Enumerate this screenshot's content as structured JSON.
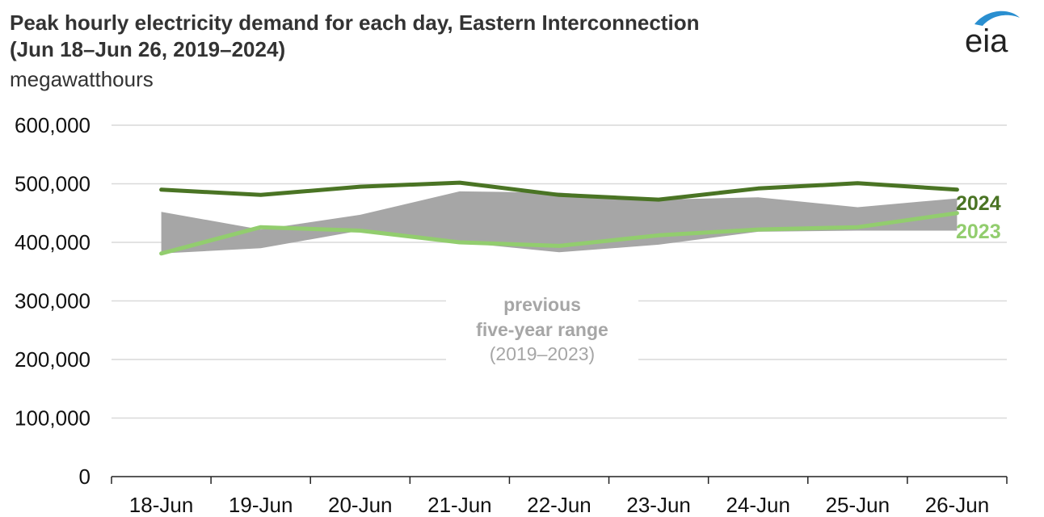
{
  "header": {
    "title_line1": "Peak hourly electricity demand for each day, Eastern Interconnection",
    "title_line2": "(Jun 18–Jun 26, 2019–2024)",
    "units": "megawatthours",
    "logo_text": "eia"
  },
  "colors": {
    "line_2024": "#4a7424",
    "line_2023": "#92cd6e",
    "range_fill": "#a6a6a6",
    "grid": "#d9d9d9"
  },
  "chart_data": {
    "type": "line",
    "title": "Peak hourly electricity demand for each day, Eastern Interconnection (Jun 18–Jun 26, 2019–2024)",
    "ylabel": "megawatthours",
    "xlabel": "",
    "categories": [
      "18-Jun",
      "19-Jun",
      "20-Jun",
      "21-Jun",
      "22-Jun",
      "23-Jun",
      "24-Jun",
      "25-Jun",
      "26-Jun"
    ],
    "ylim": [
      0,
      600000
    ],
    "yticks": [
      0,
      100000,
      200000,
      300000,
      400000,
      500000,
      600000
    ],
    "ytick_labels": [
      "0",
      "100,000",
      "200,000",
      "300,000",
      "400,000",
      "500,000",
      "600,000"
    ],
    "grid": true,
    "range": {
      "name": "previous five-year range (2019–2023)",
      "label_line1": "previous",
      "label_line2": "five-year range",
      "label_line3": "(2019–2023)",
      "upper": [
        452000,
        422000,
        447000,
        487000,
        485000,
        473000,
        477000,
        460000,
        475000
      ],
      "lower": [
        381000,
        390000,
        420000,
        400000,
        383000,
        396000,
        418000,
        420000,
        420000
      ]
    },
    "series": [
      {
        "name": "2024",
        "label": "2024",
        "values": [
          490000,
          481000,
          495000,
          502000,
          481000,
          473000,
          492000,
          501000,
          490000
        ]
      },
      {
        "name": "2023",
        "label": "2023",
        "values": [
          381000,
          426000,
          420000,
          400000,
          394000,
          412000,
          422000,
          426000,
          450000
        ]
      }
    ]
  }
}
